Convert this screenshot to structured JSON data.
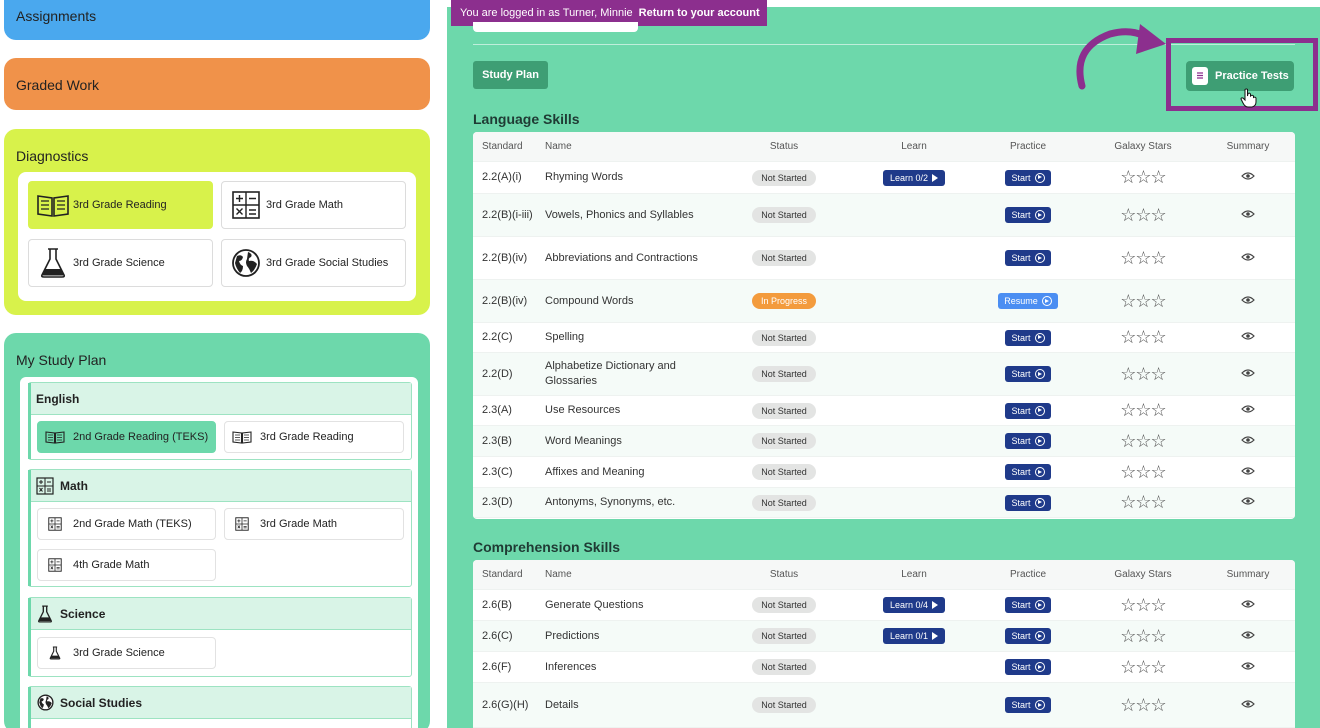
{
  "sidebar": {
    "assignments_label": "Assignments",
    "graded_label": "Graded Work",
    "diagnostics": {
      "title": "Diagnostics",
      "tiles": [
        "3rd Grade Reading",
        "3rd Grade Math",
        "3rd Grade Science",
        "3rd Grade Social Studies"
      ]
    },
    "study_plan": {
      "title": "My Study Plan",
      "english": {
        "title": "English",
        "items": [
          "2nd Grade Reading (TEKS)",
          "3rd Grade Reading"
        ]
      },
      "math": {
        "title": "Math",
        "items": [
          "2nd Grade Math (TEKS)",
          "3rd Grade Math",
          "4th Grade Math"
        ]
      },
      "science": {
        "title": "Science",
        "items": [
          "3rd Grade Science"
        ]
      },
      "social": {
        "title": "Social Studies"
      }
    }
  },
  "banner": {
    "text": "You are logged in as Turner, Minnie",
    "link": "Return to your account"
  },
  "toolbar": {
    "study_plan": "Study Plan",
    "practice_tests": "Practice Tests"
  },
  "headers": {
    "standard": "Standard",
    "name": "Name",
    "status": "Status",
    "learn": "Learn",
    "practice": "Practice",
    "stars": "Galaxy Stars",
    "summary": "Summary"
  },
  "language": {
    "title": "Language Skills",
    "rows": [
      {
        "std": "2.2(A)(i)",
        "name": "Rhyming Words",
        "status": "Not Started",
        "learn": "Learn 0/2",
        "practice": "Start"
      },
      {
        "std": "2.2(B)(i-iii)",
        "name": "Vowels, Phonics and Syllables",
        "status": "Not Started",
        "learn": "",
        "practice": "Start"
      },
      {
        "std": "2.2(B)(iv)",
        "name": "Abbreviations and Contractions",
        "status": "Not Started",
        "learn": "",
        "practice": "Start"
      },
      {
        "std": "2.2(B)(iv)",
        "name": "Compound Words",
        "status": "In Progress",
        "learn": "",
        "practice": "Resume"
      },
      {
        "std": "2.2(C)",
        "name": "Spelling",
        "status": "Not Started",
        "learn": "",
        "practice": "Start"
      },
      {
        "std": "2.2(D)",
        "name": "Alphabetize Dictionary and Glossaries",
        "status": "Not Started",
        "learn": "",
        "practice": "Start"
      },
      {
        "std": "2.3(A)",
        "name": "Use Resources",
        "status": "Not Started",
        "learn": "",
        "practice": "Start"
      },
      {
        "std": "2.3(B)",
        "name": "Word Meanings",
        "status": "Not Started",
        "learn": "",
        "practice": "Start"
      },
      {
        "std": "2.3(C)",
        "name": "Affixes and Meaning",
        "status": "Not Started",
        "learn": "",
        "practice": "Start"
      },
      {
        "std": "2.3(D)",
        "name": "Antonyms, Synonyms, etc.",
        "status": "Not Started",
        "learn": "",
        "practice": "Start"
      }
    ]
  },
  "comprehension": {
    "title": "Comprehension Skills",
    "rows": [
      {
        "std": "2.6(B)",
        "name": "Generate Questions",
        "status": "Not Started",
        "learn": "Learn 0/4",
        "practice": "Start"
      },
      {
        "std": "2.6(C)",
        "name": "Predictions",
        "status": "Not Started",
        "learn": "Learn 0/1",
        "practice": "Start"
      },
      {
        "std": "2.6(F)",
        "name": "Inferences",
        "status": "Not Started",
        "learn": "",
        "practice": "Start"
      },
      {
        "std": "2.6(G)(H)",
        "name": "Details",
        "status": "Not Started",
        "learn": "",
        "practice": "Start"
      }
    ]
  },
  "stars_glyph": "☆☆☆",
  "colors": {
    "accent_purple": "#8c2f8e",
    "main_green": "#6dd8ab",
    "navy": "#1f3a8a",
    "orange": "#f39b3d"
  }
}
